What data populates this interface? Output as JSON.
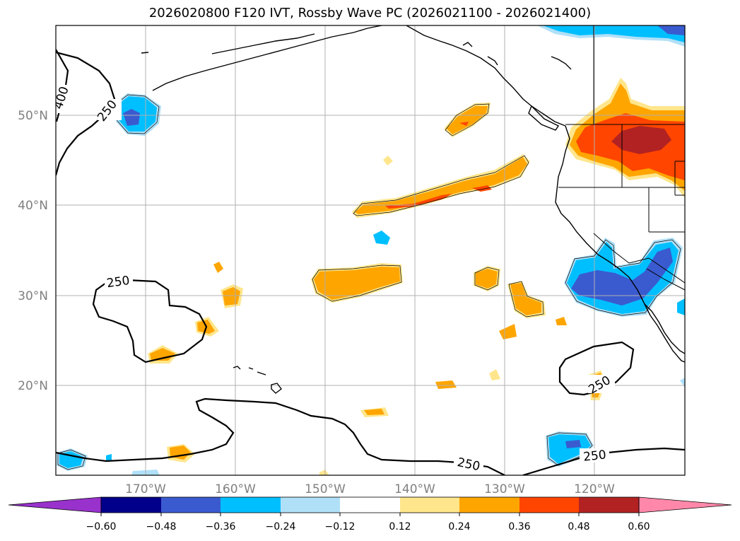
{
  "title": "2026020800 F120 IVT, Rossby Wave PC (2026021100 - 2026021400)",
  "latitude_labels": [
    "50°N",
    "40°N",
    "30°N",
    "20°N"
  ],
  "longitude_labels": [
    "170°W",
    "160°W",
    "150°W",
    "140°W",
    "130°W",
    "120°W"
  ],
  "contour_labels": [
    "400",
    "250",
    "250",
    "250",
    "250",
    "250"
  ],
  "colorbar": {
    "tick_labels": [
      "−0.60",
      "−0.48",
      "−0.36",
      "−0.24",
      "−0.12",
      "0.12",
      "0.24",
      "0.36",
      "0.48",
      "0.60"
    ],
    "bin_colors": [
      "#9932cc",
      "#00008b",
      "#3a5bd0",
      "#00bfff",
      "#b0e0f8",
      "#ffffff",
      "#ffe68c",
      "#ffa500",
      "#ff4500",
      "#b22222",
      "#ff88aa"
    ]
  },
  "colors": {
    "outline": "#000000",
    "grid": "#b0b0b0",
    "axis_label": "#808080"
  }
}
